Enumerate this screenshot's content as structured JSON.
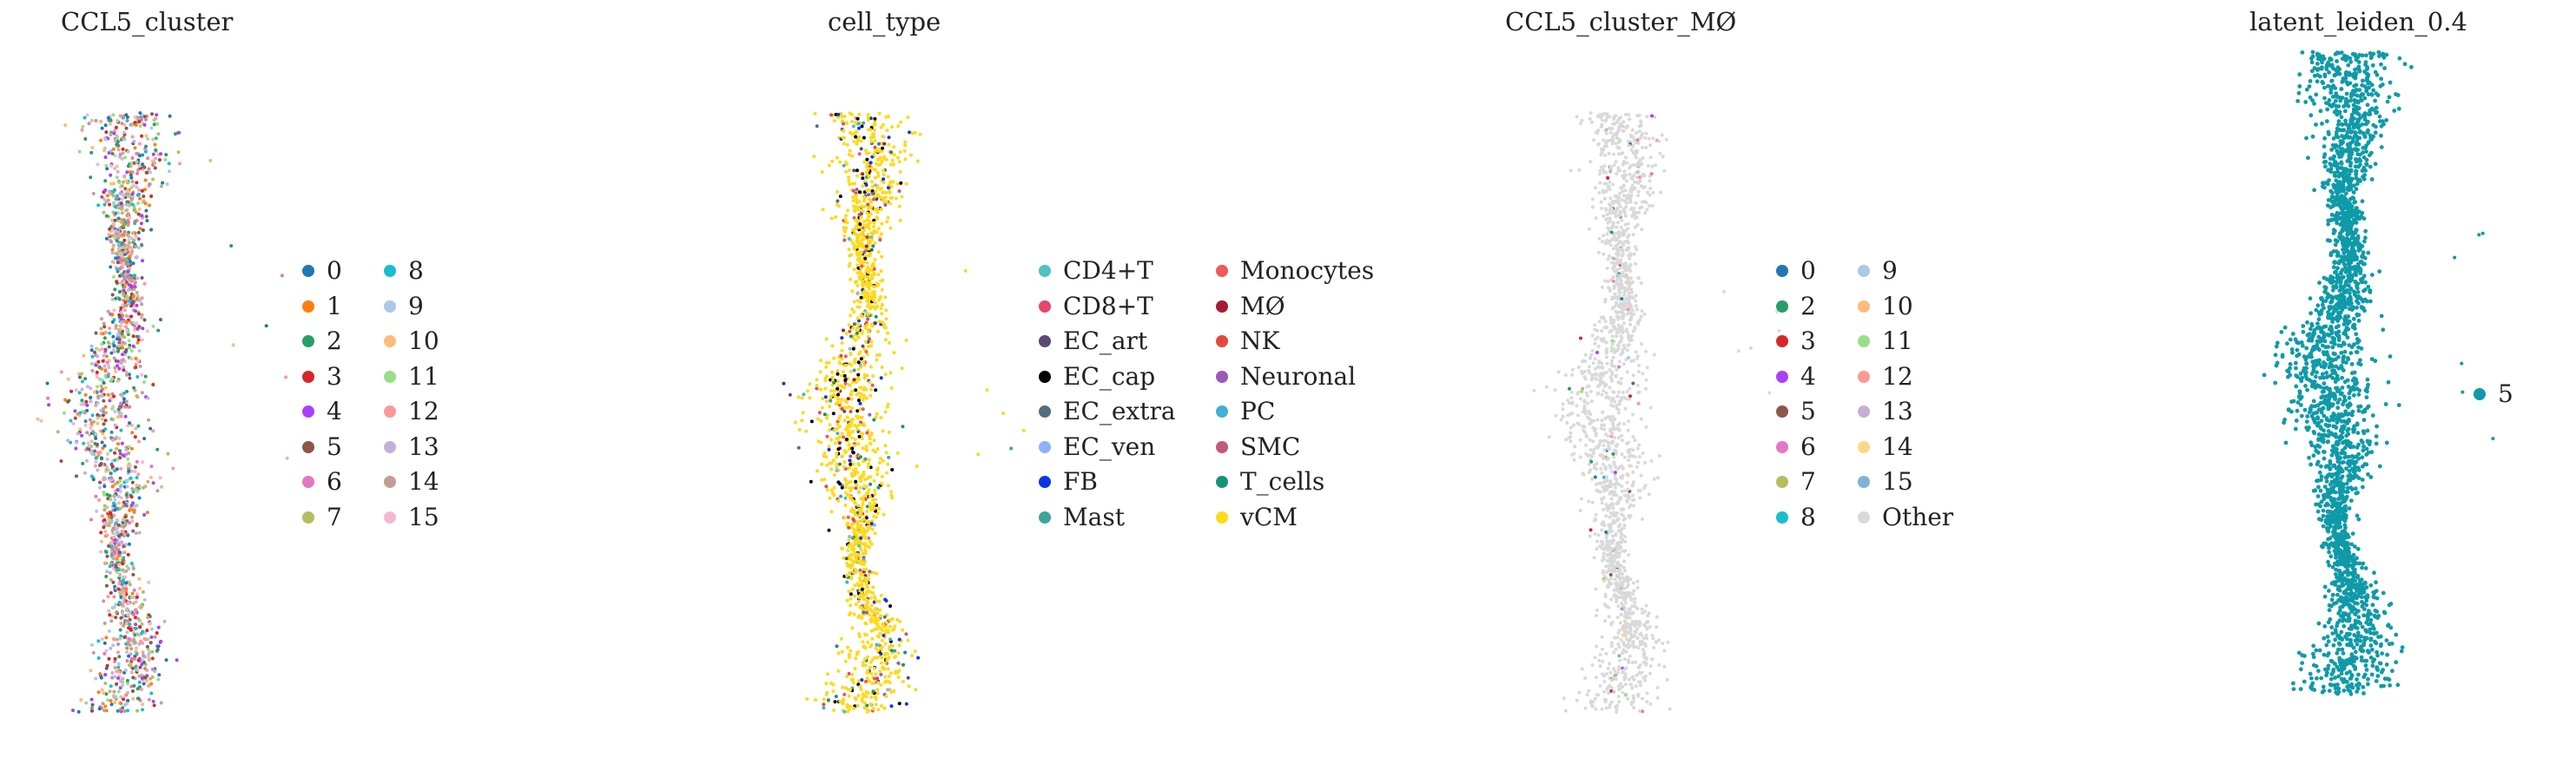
{
  "chart_data": [
    {
      "type": "scatter",
      "title": "CCL5_cluster",
      "legend_placement": "right",
      "legend_columns": 2,
      "legend": [
        {
          "label": "0",
          "color": "#1f77b4"
        },
        {
          "label": "1",
          "color": "#ff7f0e"
        },
        {
          "label": "2",
          "color": "#279e68"
        },
        {
          "label": "3",
          "color": "#d62728"
        },
        {
          "label": "4",
          "color": "#aa40fc"
        },
        {
          "label": "5",
          "color": "#8c564b"
        },
        {
          "label": "6",
          "color": "#e377c2"
        },
        {
          "label": "7",
          "color": "#b5bd61"
        },
        {
          "label": "8",
          "color": "#17becf"
        },
        {
          "label": "9",
          "color": "#aec7e8"
        },
        {
          "label": "10",
          "color": "#ffbb78"
        },
        {
          "label": "11",
          "color": "#98df8a"
        },
        {
          "label": "12",
          "color": "#ff9896"
        },
        {
          "label": "13",
          "color": "#c5b0d5"
        },
        {
          "label": "14",
          "color": "#c49c94"
        },
        {
          "label": "15",
          "color": "#f7b6d2"
        }
      ]
    },
    {
      "type": "scatter",
      "title": "cell_type",
      "legend_placement": "right",
      "legend_columns": 2,
      "legend": [
        {
          "label": "CD4+T",
          "color": "#4ec1c1"
        },
        {
          "label": "CD8+T",
          "color": "#e6466e"
        },
        {
          "label": "EC_art",
          "color": "#5c4a72"
        },
        {
          "label": "EC_cap",
          "color": "#000000"
        },
        {
          "label": "EC_extra",
          "color": "#52707c"
        },
        {
          "label": "EC_ven",
          "color": "#8fb0ff"
        },
        {
          "label": "FB",
          "color": "#0a37e6"
        },
        {
          "label": "Mast",
          "color": "#3ca59b"
        },
        {
          "label": "Monocytes",
          "color": "#ee5a5a"
        },
        {
          "label": "MØ",
          "color": "#a51c34"
        },
        {
          "label": "NK",
          "color": "#e24a3b"
        },
        {
          "label": "Neuronal",
          "color": "#9b59b6"
        },
        {
          "label": "PC",
          "color": "#3fb0d6"
        },
        {
          "label": "SMC",
          "color": "#c05a7d"
        },
        {
          "label": "T_cells",
          "color": "#16927a"
        },
        {
          "label": "vCM",
          "color": "#ffd91a"
        }
      ]
    },
    {
      "type": "scatter",
      "title": "CCL5_cluster_MØ",
      "legend_placement": "right",
      "legend_columns": 2,
      "legend": [
        {
          "label": "0",
          "color": "#1f77b4"
        },
        {
          "label": "2",
          "color": "#279e68"
        },
        {
          "label": "3",
          "color": "#d62728"
        },
        {
          "label": "4",
          "color": "#aa40fc"
        },
        {
          "label": "5",
          "color": "#8c564b"
        },
        {
          "label": "6",
          "color": "#e377c2"
        },
        {
          "label": "7",
          "color": "#b5bd61"
        },
        {
          "label": "8",
          "color": "#17becf"
        },
        {
          "label": "9",
          "color": "#aec7e8"
        },
        {
          "label": "10",
          "color": "#ffbb78"
        },
        {
          "label": "11",
          "color": "#98df8a"
        },
        {
          "label": "12",
          "color": "#ff9896"
        },
        {
          "label": "13",
          "color": "#c5b0d5"
        },
        {
          "label": "14",
          "color": "#ffd684"
        },
        {
          "label": "15",
          "color": "#7fb2d8"
        },
        {
          "label": "Other",
          "color": "#d9d9d9"
        }
      ]
    },
    {
      "type": "scatter",
      "title": "latent_leiden_0.4",
      "legend_placement": "right",
      "legend_columns": 1,
      "legend": [
        {
          "label": "5",
          "color": "#0f9aa8"
        }
      ]
    }
  ]
}
